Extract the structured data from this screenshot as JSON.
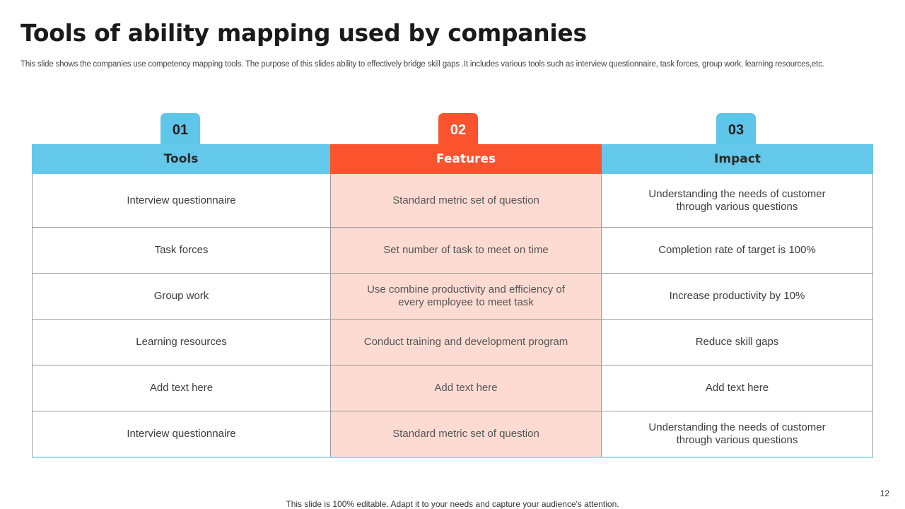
{
  "slide": {
    "title": "Tools of ability mapping used by companies",
    "description": "This slide shows the companies use competency mapping tools. The purpose of this slides ability to effectively  bridge skill gaps .It includes various tools such as interview questionnaire, task forces, group work, learning resources,etc."
  },
  "badges": [
    "01",
    "02",
    "03"
  ],
  "table": {
    "headers": [
      "Tools",
      "Features",
      "Impact"
    ],
    "rows": [
      [
        "Interview questionnaire",
        "Standard metric set of question",
        "Understanding the needs of customer through various questions"
      ],
      [
        "Task forces",
        "Set number of task to meet on time",
        "Completion rate of target is 100%"
      ],
      [
        "Group work",
        "Use combine productivity and efficiency of every employee to meet task",
        "Increase productivity by 10%"
      ],
      [
        "Learning resources",
        "Conduct training and development program",
        "Reduce skill gaps"
      ],
      [
        "Add text here",
        "Add text here",
        "Add text here"
      ],
      [
        "Interview questionnaire",
        "Standard metric set of question",
        "Understanding the needs of customer through various questions"
      ]
    ]
  },
  "footer": {
    "note": "This slide is 100% editable. Adapt it to your needs and capture your audience's attention.",
    "page_number": "12"
  },
  "colors": {
    "accent_blue": "#63c8e9",
    "accent_orange": "#fb532d",
    "features_fill": "#fddbd3"
  }
}
